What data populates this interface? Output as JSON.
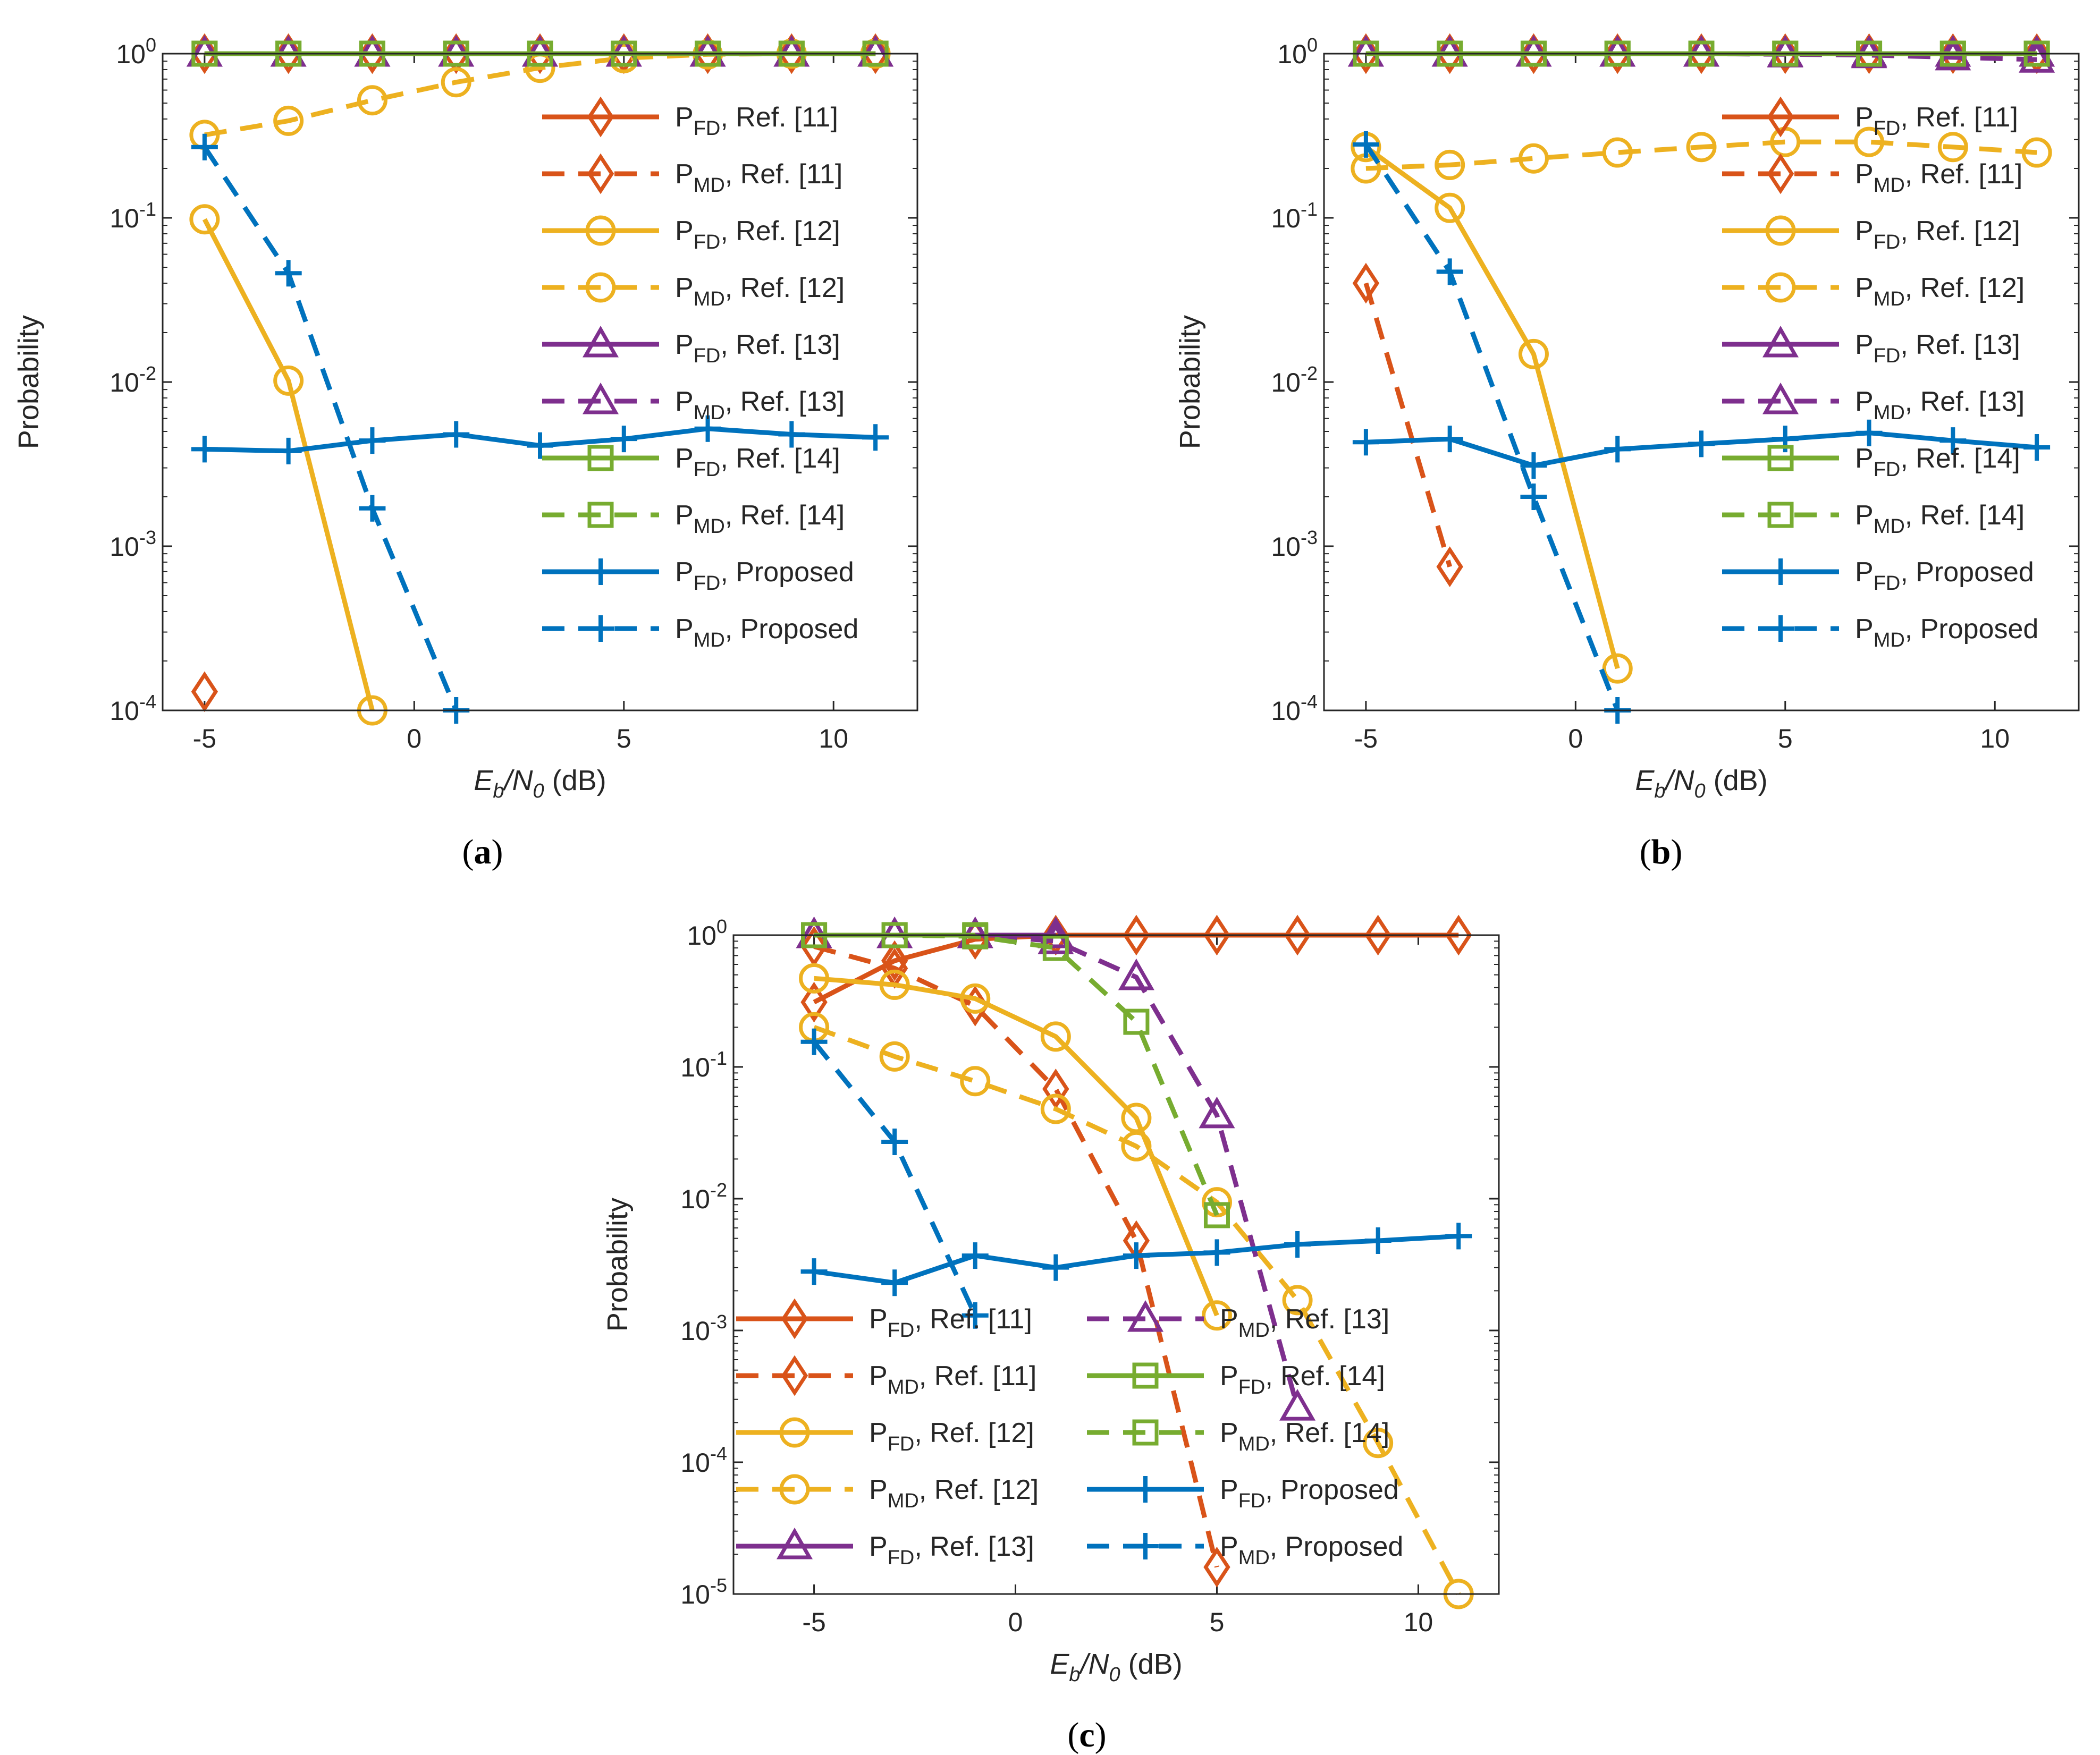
{
  "figure": {
    "panels": [
      "a",
      "b",
      "c"
    ]
  },
  "colors": {
    "ref11": "#D95319",
    "ref12": "#EDB120",
    "ref13": "#7E2F8E",
    "ref14": "#77AC30",
    "proposed": "#0072BD",
    "axis": "#262626"
  },
  "chart_data": [
    {
      "id": "a",
      "caption": "(a)",
      "type": "line",
      "yscale": "log",
      "xlabel_main": "E",
      "xlabel_sub_b": "b",
      "xlabel_sep": "/N",
      "xlabel_sub_0": "0",
      "xlabel_unit": " (dB)",
      "ylabel": "Probability",
      "xlim": [
        -6,
        12
      ],
      "ylim_exp": [
        -4,
        0
      ],
      "xticks": [
        -5,
        0,
        5,
        10
      ],
      "yticks_exp": [
        -4,
        -3,
        -2,
        -1,
        0
      ],
      "legend_position": "upper-right",
      "legend_columns": 1,
      "series": [
        {
          "name_main": "P",
          "name_sub": "FD",
          "name_rest": ", Ref. [11]",
          "color": "#D95319",
          "dash": false,
          "marker": "diamond",
          "x": [
            -5,
            -3,
            -1,
            1,
            3,
            5,
            7,
            9,
            11
          ],
          "y": [
            1,
            1,
            1,
            1,
            1,
            1,
            1,
            1,
            1
          ]
        },
        {
          "name_main": "P",
          "name_sub": "MD",
          "name_rest": ", Ref. [11]",
          "color": "#D95319",
          "dash": true,
          "marker": "diamond",
          "x": [
            -5
          ],
          "y": [
            0.00013
          ]
        },
        {
          "name_main": "P",
          "name_sub": "FD",
          "name_rest": ", Ref. [12]",
          "color": "#EDB120",
          "dash": false,
          "marker": "circle",
          "x": [
            -5,
            -3,
            -1
          ],
          "y": [
            0.098,
            0.0102,
            0.0001
          ]
        },
        {
          "name_main": "P",
          "name_sub": "MD",
          "name_rest": ", Ref. [12]",
          "color": "#EDB120",
          "dash": true,
          "marker": "circle",
          "x": [
            -5,
            -3,
            -1,
            1,
            3,
            5,
            7,
            9,
            11
          ],
          "y": [
            0.32,
            0.39,
            0.52,
            0.67,
            0.82,
            0.94,
            0.99,
            1,
            1
          ]
        },
        {
          "name_main": "P",
          "name_sub": "FD",
          "name_rest": ", Ref. [13]",
          "color": "#7E2F8E",
          "dash": false,
          "marker": "triangle",
          "x": [
            -5,
            -3,
            -1,
            1,
            3,
            5,
            7,
            9,
            11
          ],
          "y": [
            1,
            1,
            1,
            1,
            1,
            1,
            1,
            1,
            1
          ]
        },
        {
          "name_main": "P",
          "name_sub": "MD",
          "name_rest": ", Ref. [13]",
          "color": "#7E2F8E",
          "dash": true,
          "marker": "triangle",
          "x": [
            -5,
            -3,
            -1,
            1,
            3,
            5,
            7,
            9,
            11
          ],
          "y": [
            1,
            1,
            1,
            1,
            1,
            1,
            1,
            1,
            1
          ]
        },
        {
          "name_main": "P",
          "name_sub": "FD",
          "name_rest": ", Ref. [14]",
          "color": "#77AC30",
          "dash": false,
          "marker": "square",
          "x": [
            -5,
            -3,
            -1,
            1,
            3,
            5,
            7,
            9,
            11
          ],
          "y": [
            1,
            1,
            1,
            1,
            1,
            1,
            1,
            1,
            1
          ]
        },
        {
          "name_main": "P",
          "name_sub": "MD",
          "name_rest": ", Ref. [14]",
          "color": "#77AC30",
          "dash": true,
          "marker": "square",
          "x": [
            -5,
            -3,
            -1,
            1,
            3,
            5,
            7,
            9,
            11
          ],
          "y": [
            1,
            1,
            1,
            1,
            1,
            1,
            1,
            1,
            1
          ]
        },
        {
          "name_main": "P",
          "name_sub": "FD",
          "name_rest": ", Proposed",
          "color": "#0072BD",
          "dash": false,
          "marker": "plus",
          "x": [
            -5,
            -3,
            -1,
            1,
            3,
            5,
            7,
            9,
            11
          ],
          "y": [
            0.0039,
            0.0038,
            0.0044,
            0.0048,
            0.0041,
            0.0045,
            0.0052,
            0.0048,
            0.0046
          ]
        },
        {
          "name_main": "P",
          "name_sub": "MD",
          "name_rest": ", Proposed",
          "color": "#0072BD",
          "dash": true,
          "marker": "plus",
          "x": [
            -5,
            -3,
            -1,
            1
          ],
          "y": [
            0.27,
            0.046,
            0.0017,
            0.0001
          ]
        }
      ]
    },
    {
      "id": "b",
      "caption": "(b)",
      "type": "line",
      "yscale": "log",
      "xlabel_main": "E",
      "xlabel_sub_b": "b",
      "xlabel_sep": "/N",
      "xlabel_sub_0": "0",
      "xlabel_unit": " (dB)",
      "ylabel": "Probability",
      "xlim": [
        -6,
        12
      ],
      "ylim_exp": [
        -4,
        0
      ],
      "xticks": [
        -5,
        0,
        5,
        10
      ],
      "yticks_exp": [
        -4,
        -3,
        -2,
        -1,
        0
      ],
      "legend_position": "upper-right",
      "legend_columns": 1,
      "series": [
        {
          "name_main": "P",
          "name_sub": "FD",
          "name_rest": ", Ref. [11]",
          "color": "#D95319",
          "dash": false,
          "marker": "diamond",
          "x": [
            -5,
            -3,
            -1,
            1,
            3,
            5,
            7,
            9,
            11
          ],
          "y": [
            1,
            1,
            1,
            1,
            1,
            1,
            1,
            1,
            1
          ]
        },
        {
          "name_main": "P",
          "name_sub": "MD",
          "name_rest": ", Ref. [11]",
          "color": "#D95319",
          "dash": true,
          "marker": "diamond",
          "x": [
            -5,
            -3
          ],
          "y": [
            0.04,
            0.00075
          ]
        },
        {
          "name_main": "P",
          "name_sub": "FD",
          "name_rest": ", Ref. [12]",
          "color": "#EDB120",
          "dash": false,
          "marker": "circle",
          "x": [
            -5,
            -3,
            -1,
            1
          ],
          "y": [
            0.27,
            0.115,
            0.0148,
            0.00018
          ]
        },
        {
          "name_main": "P",
          "name_sub": "MD",
          "name_rest": ", Ref. [12]",
          "color": "#EDB120",
          "dash": true,
          "marker": "circle",
          "x": [
            -5,
            -3,
            -1,
            1,
            3,
            5,
            7,
            9,
            11
          ],
          "y": [
            0.2,
            0.21,
            0.23,
            0.25,
            0.27,
            0.29,
            0.29,
            0.27,
            0.25
          ]
        },
        {
          "name_main": "P",
          "name_sub": "FD",
          "name_rest": ", Ref. [13]",
          "color": "#7E2F8E",
          "dash": false,
          "marker": "triangle",
          "x": [
            -5,
            -3,
            -1,
            1,
            3,
            5,
            7,
            9,
            11
          ],
          "y": [
            1,
            1,
            1,
            1,
            1,
            1,
            1,
            1,
            1
          ]
        },
        {
          "name_main": "P",
          "name_sub": "MD",
          "name_rest": ", Ref. [13]",
          "color": "#7E2F8E",
          "dash": true,
          "marker": "triangle",
          "x": [
            -5,
            -3,
            -1,
            1,
            3,
            5,
            7,
            9,
            11
          ],
          "y": [
            1,
            1,
            1,
            1,
            1,
            0.99,
            0.98,
            0.95,
            0.92
          ]
        },
        {
          "name_main": "P",
          "name_sub": "FD",
          "name_rest": ", Ref. [14]",
          "color": "#77AC30",
          "dash": false,
          "marker": "square",
          "x": [
            -5,
            -3,
            -1,
            1,
            3,
            5,
            7,
            9,
            11
          ],
          "y": [
            1,
            1,
            1,
            1,
            1,
            1,
            1,
            1,
            1
          ]
        },
        {
          "name_main": "P",
          "name_sub": "MD",
          "name_rest": ", Ref. [14]",
          "color": "#77AC30",
          "dash": true,
          "marker": "square",
          "x": [
            -5,
            -3,
            -1,
            1,
            3,
            5,
            7,
            9,
            11
          ],
          "y": [
            1,
            1,
            1,
            1,
            1,
            1,
            1,
            1,
            1
          ]
        },
        {
          "name_main": "P",
          "name_sub": "FD",
          "name_rest": ", Proposed",
          "color": "#0072BD",
          "dash": false,
          "marker": "plus",
          "x": [
            -5,
            -3,
            -1,
            1,
            3,
            5,
            7,
            9,
            11
          ],
          "y": [
            0.0043,
            0.0045,
            0.0031,
            0.0039,
            0.0042,
            0.0045,
            0.0049,
            0.0044,
            0.004
          ]
        },
        {
          "name_main": "P",
          "name_sub": "MD",
          "name_rest": ", Proposed",
          "color": "#0072BD",
          "dash": true,
          "marker": "plus",
          "x": [
            -5,
            -3,
            -1,
            1
          ],
          "y": [
            0.28,
            0.047,
            0.002,
            0.0001
          ]
        }
      ]
    },
    {
      "id": "c",
      "caption": "(c)",
      "type": "line",
      "yscale": "log",
      "xlabel_main": "E",
      "xlabel_sub_b": "b",
      "xlabel_sep": "/N",
      "xlabel_sub_0": "0",
      "xlabel_unit": " (dB)",
      "ylabel": "Probability",
      "xlim": [
        -7,
        12
      ],
      "ylim_exp": [
        -5,
        0
      ],
      "xticks": [
        -5,
        0,
        5,
        10
      ],
      "yticks_exp": [
        -5,
        -4,
        -3,
        -2,
        -1,
        0
      ],
      "legend_position": "lower-center",
      "legend_columns": 2,
      "series": [
        {
          "name_main": "P",
          "name_sub": "FD",
          "name_rest": ", Ref. [11]",
          "color": "#D95319",
          "dash": false,
          "marker": "diamond",
          "x": [
            -5,
            -3,
            -1,
            1,
            3,
            5,
            7,
            9,
            11
          ],
          "y": [
            0.31,
            0.64,
            0.93,
            1,
            1,
            1,
            1,
            1,
            1
          ]
        },
        {
          "name_main": "P",
          "name_sub": "MD",
          "name_rest": ", Ref. [11]",
          "color": "#D95319",
          "dash": true,
          "marker": "diamond",
          "x": [
            -5,
            -3,
            -1,
            1,
            3,
            5
          ],
          "y": [
            0.82,
            0.56,
            0.29,
            0.068,
            0.0048,
            1.6e-05
          ]
        },
        {
          "name_main": "P",
          "name_sub": "FD",
          "name_rest": ", Ref. [12]",
          "color": "#EDB120",
          "dash": false,
          "marker": "circle",
          "x": [
            -5,
            -3,
            -1,
            1,
            3,
            5
          ],
          "y": [
            0.47,
            0.42,
            0.33,
            0.17,
            0.041,
            0.0013
          ]
        },
        {
          "name_main": "P",
          "name_sub": "MD",
          "name_rest": ", Ref. [12]",
          "color": "#EDB120",
          "dash": true,
          "marker": "circle",
          "x": [
            -5,
            -3,
            -1,
            1,
            3,
            5,
            7,
            9,
            11
          ],
          "y": [
            0.2,
            0.12,
            0.078,
            0.048,
            0.025,
            0.0094,
            0.0017,
            0.00014,
            1e-05
          ]
        },
        {
          "name_main": "P",
          "name_sub": "FD",
          "name_rest": ", Ref. [13]",
          "color": "#7E2F8E",
          "dash": false,
          "marker": "triangle",
          "x": [
            -5,
            -3,
            -1,
            1
          ],
          "y": [
            1,
            1,
            1,
            1
          ]
        },
        {
          "name_main": "P",
          "name_sub": "MD",
          "name_rest": ", Ref. [13]",
          "color": "#7E2F8E",
          "dash": true,
          "marker": "triangle",
          "x": [
            -5,
            -3,
            -1,
            1,
            3,
            5,
            7
          ],
          "y": [
            1,
            1,
            1,
            0.9,
            0.48,
            0.043,
            0.00026
          ]
        },
        {
          "name_main": "P",
          "name_sub": "FD",
          "name_rest": ", Ref. [14]",
          "color": "#77AC30",
          "dash": false,
          "marker": "square",
          "x": [
            -5,
            -3,
            -1
          ],
          "y": [
            1,
            1,
            1
          ]
        },
        {
          "name_main": "P",
          "name_sub": "MD",
          "name_rest": ", Ref. [14]",
          "color": "#77AC30",
          "dash": true,
          "marker": "square",
          "x": [
            -5,
            -3,
            -1,
            1,
            3,
            5
          ],
          "y": [
            1,
            1,
            0.98,
            0.8,
            0.22,
            0.0075
          ]
        },
        {
          "name_main": "P",
          "name_sub": "FD",
          "name_rest": ", Proposed",
          "color": "#0072BD",
          "dash": false,
          "marker": "plus",
          "x": [
            -5,
            -3,
            -1,
            1,
            3,
            5,
            7,
            9,
            11
          ],
          "y": [
            0.0028,
            0.0023,
            0.0037,
            0.003,
            0.0037,
            0.0039,
            0.0045,
            0.0048,
            0.0052
          ]
        },
        {
          "name_main": "P",
          "name_sub": "MD",
          "name_rest": ", Proposed",
          "color": "#0072BD",
          "dash": true,
          "marker": "plus",
          "x": [
            -5,
            -3,
            -1
          ],
          "y": [
            0.155,
            0.027,
            0.0013
          ]
        }
      ]
    }
  ]
}
